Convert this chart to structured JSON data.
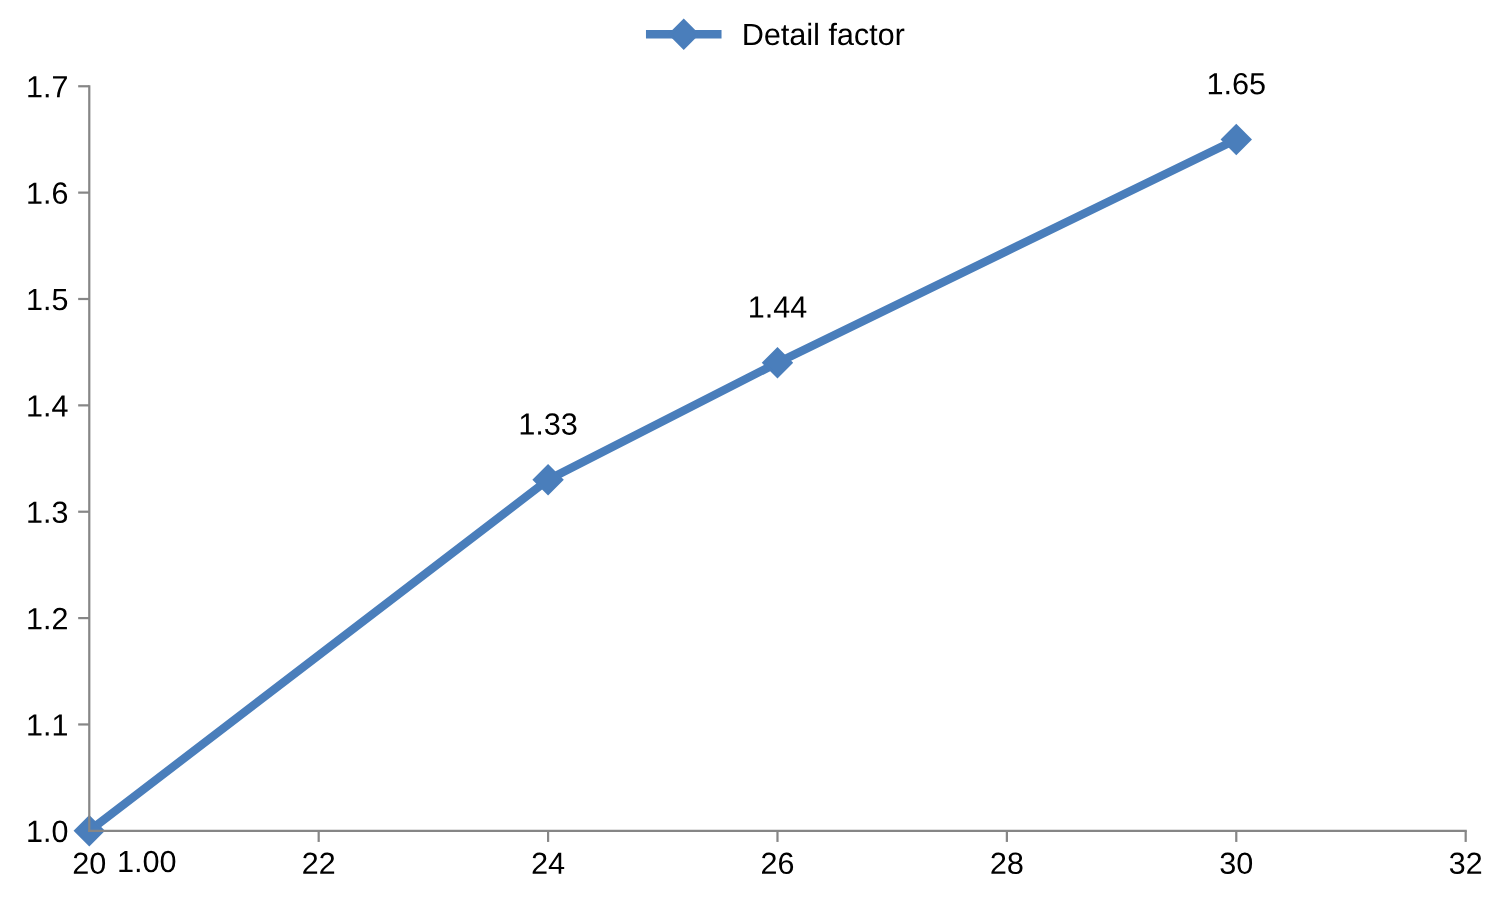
{
  "chart_data": {
    "type": "line",
    "x": [
      20,
      24,
      26,
      30
    ],
    "series": [
      {
        "name": "Detail factor",
        "color": "#4a7ebb",
        "values": [
          1.0,
          1.33,
          1.44,
          1.65
        ],
        "value_labels": [
          "1.00",
          "1.33",
          "1.44",
          "1.65"
        ]
      }
    ],
    "xlim": [
      20,
      32
    ],
    "xticks": [
      20,
      22,
      24,
      26,
      28,
      30,
      32
    ],
    "ylim": [
      1.0,
      1.7
    ],
    "yticks": [
      {
        "value": 1.0,
        "label": "1.0"
      },
      1.1,
      1.2,
      1.3,
      1.4,
      1.5,
      1.6,
      1.7
    ],
    "marker": "diamond",
    "line_style": "solid",
    "grid": false,
    "legend": "top"
  }
}
